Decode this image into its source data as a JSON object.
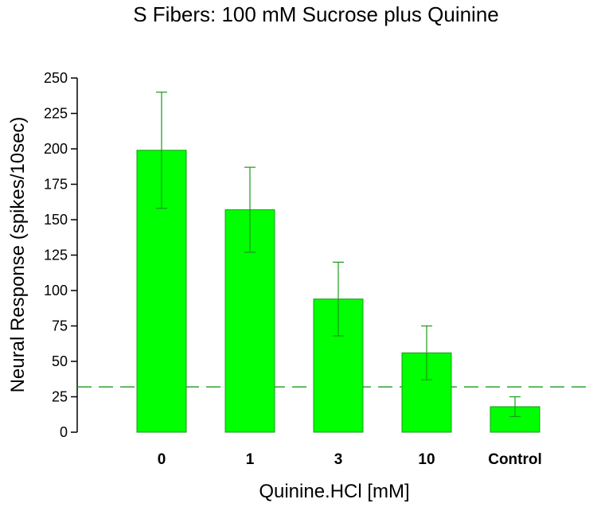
{
  "chart_data": {
    "type": "bar",
    "title": "S Fibers: 100 mM Sucrose plus Quinine",
    "xlabel": "Quinine.HCl [mM]",
    "ylabel": "Neural Response (spikes/10sec)",
    "categories": [
      "0",
      "1",
      "3",
      "10",
      "Control"
    ],
    "values": [
      199,
      157,
      94,
      56,
      18
    ],
    "error_upper": [
      240,
      187,
      120,
      75,
      25
    ],
    "error_lower": [
      158,
      127,
      68,
      37,
      11
    ],
    "reference_line": 32,
    "ylim": [
      0,
      250
    ],
    "yticks": [
      "0",
      "25",
      "50",
      "75",
      "100",
      "125",
      "150",
      "175",
      "200",
      "225",
      "250"
    ],
    "ytick_values": [
      0,
      25,
      50,
      75,
      100,
      125,
      150,
      175,
      200,
      225,
      250
    ],
    "grid": false,
    "colors": {
      "bar_fill": "#00ff00",
      "bar_stroke": "#1a9a1a",
      "error_bar": "#1a9a1a",
      "reference_line": "#1a9a1a",
      "axis": "#000000"
    }
  }
}
